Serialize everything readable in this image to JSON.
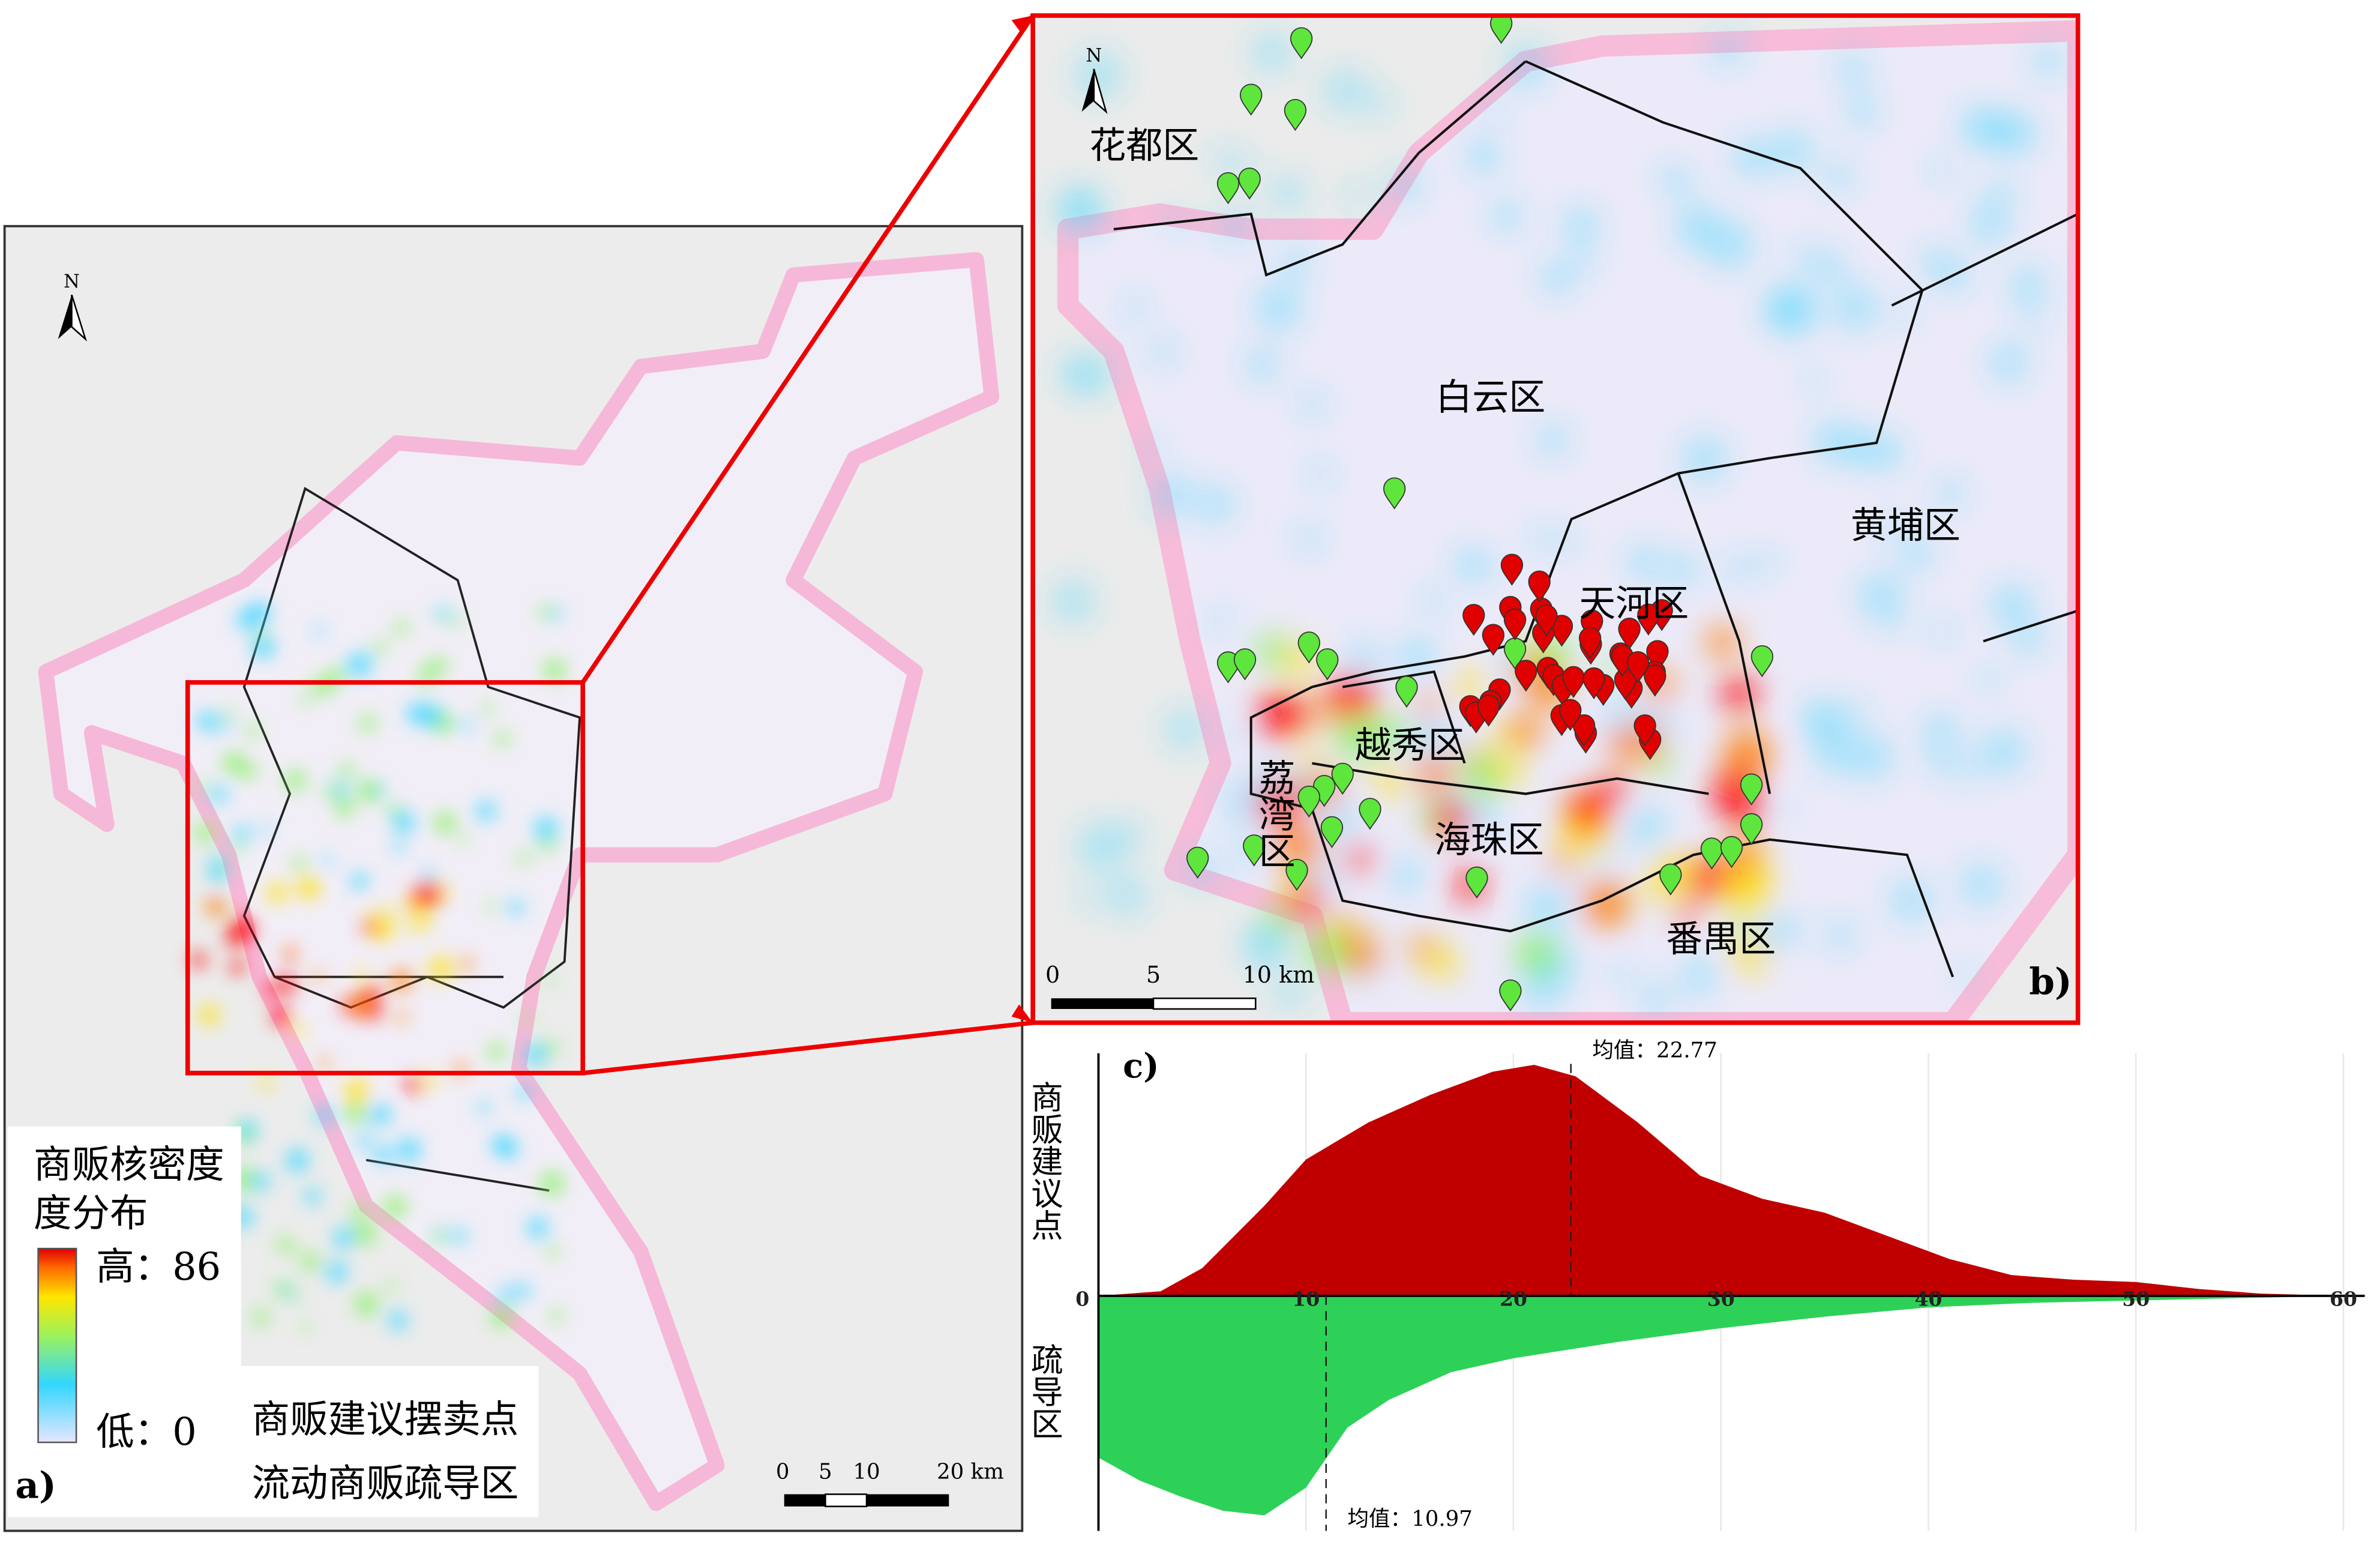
{
  "panel_a": {
    "label": "a)",
    "north": "N",
    "legend": {
      "title": [
        "商贩核密度",
        "度分布"
      ],
      "high": "高：86",
      "low": "低：0",
      "items": [
        "商贩建议摆卖点",
        "流动商贩疏导区"
      ]
    },
    "scale": [
      "0",
      "5",
      "10",
      "20 km"
    ]
  },
  "panel_b": {
    "label": "b)",
    "north": "N",
    "districts": [
      "花都区",
      "白云区",
      "黄埔区",
      "天河区",
      "越秀区",
      "荔湾区",
      "海珠区",
      "番禺区"
    ],
    "scale": [
      "0",
      "5",
      "10 km"
    ]
  },
  "chart_data": {
    "type": "area",
    "label": "c)",
    "xlim": [
      0,
      60
    ],
    "xticks": [
      0,
      10,
      20,
      30,
      40,
      50,
      60
    ],
    "ylim": [
      0,
      1.05
    ],
    "series": [
      {
        "name": "商贩建议点",
        "color": "#c00000",
        "direction": "up",
        "x": [
          0,
          3,
          5,
          8,
          10,
          13,
          16,
          19,
          21,
          23,
          26,
          29,
          32,
          35,
          38,
          41,
          44,
          47,
          50,
          53,
          56,
          60
        ],
        "values": [
          0,
          0.02,
          0.12,
          0.39,
          0.59,
          0.75,
          0.87,
          0.97,
          1.0,
          0.95,
          0.75,
          0.52,
          0.42,
          0.36,
          0.26,
          0.16,
          0.09,
          0.07,
          0.06,
          0.03,
          0.01,
          0
        ],
        "mean": 22.77,
        "mean_label": "均值：22.77"
      },
      {
        "name": "疏导区",
        "color": "#2ed158",
        "direction": "down",
        "x": [
          0,
          2,
          4,
          6,
          8,
          10,
          12,
          14,
          17,
          20,
          25,
          30,
          35,
          40,
          45,
          50,
          55,
          60
        ],
        "values": [
          0.7,
          0.8,
          0.87,
          0.93,
          0.95,
          0.83,
          0.57,
          0.45,
          0.33,
          0.27,
          0.2,
          0.14,
          0.09,
          0.05,
          0.03,
          0.02,
          0.01,
          0
        ],
        "mean": 10.97,
        "mean_label": "均值：10.97"
      }
    ]
  }
}
